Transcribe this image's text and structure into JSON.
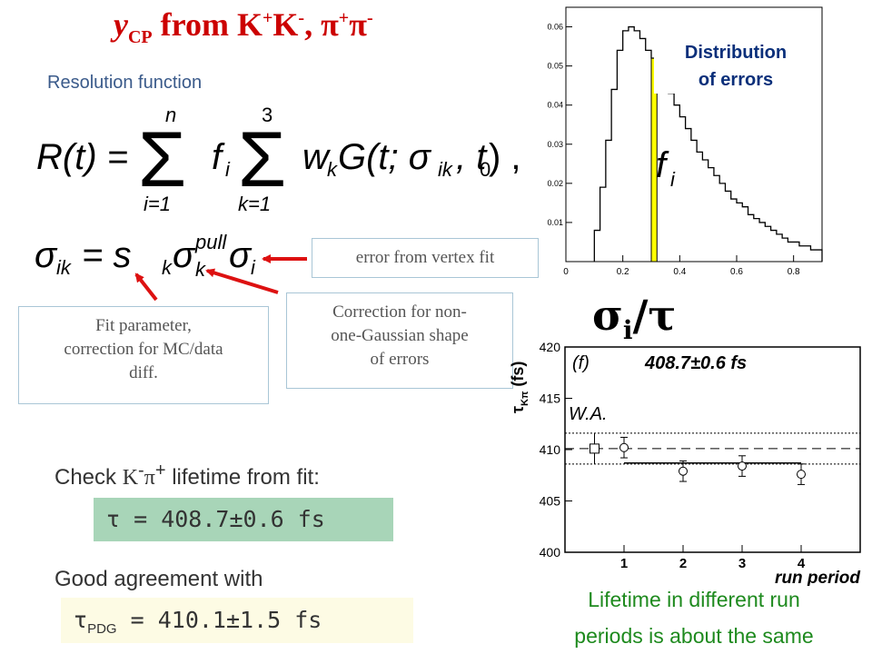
{
  "title": {
    "main": "y",
    "sub": "CP",
    "mid": " from K",
    "s1": "+",
    "k2": "K",
    "s2": "-",
    "comma": ", π",
    "s3": "+",
    "pi2": "π",
    "s4": "-"
  },
  "resolution_label": "Resolution function",
  "equation1": {
    "lhs": "R(t) = ",
    "sum1_top": "n",
    "sum1_bot": "i=1",
    "fi": "f",
    "fi_sub": "i",
    "sum2_top": "3",
    "sum2_bot": "k=1",
    "rhs": "w",
    "rhs_sub": "k",
    "rhs2": "G(t; σ",
    "rhs2_sub": "ik",
    "rhs3": ", t",
    "rhs3_sub": "0",
    "rhs4": ") ,"
  },
  "equation2": {
    "lhs": "σ",
    "lhs_sub": "ik",
    "eq": " = s",
    "s_sub": "k",
    "sigma": "σ",
    "sigma_sup": "pull",
    "sigma_sub": "k",
    "sigma2": "σ",
    "sigma2_sub": "i"
  },
  "annotations": {
    "error_vertex": "error from vertex fit",
    "correction": "Correction for non-one-Gaussian shape of errors",
    "correction_lines": [
      "Correction for non-",
      "one-Gaussian shape",
      "of errors"
    ],
    "fit_lines": [
      "Fit parameter,",
      "correction for MC/data",
      "diff."
    ]
  },
  "check": {
    "pre": "Check ",
    "K": "K",
    "Ksup": "-",
    "pi": "π",
    "pisup": "+",
    "post": " lifetime from fit:"
  },
  "tau_fit": "τ = 408.7±0.6 fs",
  "good_agreement": "Good agreement with",
  "pdg": {
    "tau": "τ",
    "sub": "PDG",
    "value": " = 410.1±1.5 fs"
  },
  "lifetime_caption": [
    "Lifetime in different run",
    "periods is about the same"
  ],
  "sigma_tau": "σ",
  "sigma_tau_sub": "i",
  "sigma_tau_rest": "/τ",
  "dist_label": [
    "Distribution",
    "of errors"
  ],
  "colors": {
    "title": "#cc0000",
    "highlight": "#ffff00",
    "arrow": "#dd1111",
    "caption": "#1e8a1e",
    "tau_box": "#a8d5b8",
    "pdg_box": "#fdfbe4"
  },
  "chart_data": [
    {
      "type": "bar",
      "title": "",
      "annotation": "f_i",
      "xlim": [
        0,
        0.9
      ],
      "ylim": [
        0,
        0.065
      ],
      "x_ticks": [
        "0",
        "0.2",
        "0.4",
        "0.6",
        "0.8"
      ],
      "y_ticks": [
        "0.01",
        "0.02",
        "0.03",
        "0.04",
        "0.05",
        "0.06"
      ],
      "bin_width": 0.02,
      "bins_x": [
        0.1,
        0.12,
        0.14,
        0.16,
        0.18,
        0.2,
        0.22,
        0.24,
        0.26,
        0.28,
        0.3,
        0.32,
        0.34,
        0.36,
        0.38,
        0.4,
        0.42,
        0.44,
        0.46,
        0.48,
        0.5,
        0.52,
        0.54,
        0.56,
        0.58,
        0.6,
        0.62,
        0.64,
        0.66,
        0.68,
        0.7,
        0.72,
        0.74,
        0.76,
        0.78,
        0.8,
        0.82,
        0.84,
        0.86,
        0.88
      ],
      "values": [
        0.008,
        0.019,
        0.031,
        0.044,
        0.054,
        0.059,
        0.06,
        0.059,
        0.057,
        0.054,
        0.052,
        0.049,
        0.046,
        0.043,
        0.04,
        0.037,
        0.034,
        0.031,
        0.028,
        0.026,
        0.024,
        0.022,
        0.02,
        0.018,
        0.016,
        0.015,
        0.014,
        0.012,
        0.011,
        0.01,
        0.009,
        0.008,
        0.007,
        0.006,
        0.005,
        0.005,
        0.004,
        0.004,
        0.003,
        0.003
      ],
      "highlight_bin_x": 0.3,
      "highlight_value": 0.052
    },
    {
      "type": "scatter",
      "title": "408.7±0.6 fs",
      "panel_label": "(f)",
      "world_average_label": "W.A.",
      "xlabel": "run period",
      "ylabel": "τ",
      "ylabel_sub": "Kπ",
      "ylabel_unit": " (fs)",
      "xlim": [
        0,
        5
      ],
      "ylim": [
        400,
        420
      ],
      "x_ticks": [
        "1",
        "2",
        "3",
        "4"
      ],
      "y_ticks": [
        "400",
        "405",
        "410",
        "415",
        "420"
      ],
      "world_average": {
        "x": 0.5,
        "y": 410.1,
        "err": 1.5
      },
      "points": [
        {
          "x": 1,
          "y": 410.2,
          "err": 1.0
        },
        {
          "x": 2,
          "y": 407.9,
          "err": 1.0
        },
        {
          "x": 3,
          "y": 408.4,
          "err": 1.0
        },
        {
          "x": 4,
          "y": 407.6,
          "err": 1.0
        }
      ],
      "fit": {
        "value": 408.7,
        "err": 0.6,
        "x_range": [
          1,
          4
        ]
      },
      "reference_band": {
        "value": 410.1,
        "err": 1.5
      }
    }
  ]
}
